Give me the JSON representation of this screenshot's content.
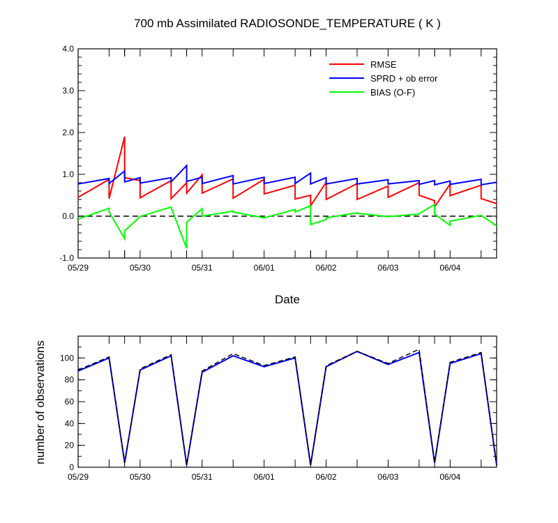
{
  "chart_data": [
    {
      "type": "line",
      "title": "700 mb Assimilated RADIOSONDE_TEMPERATURE ( K )",
      "xlabel": "Date",
      "ylabel": "",
      "x_tick_labels": [
        "05/29",
        "05/30",
        "05/31",
        "06/01",
        "06/02",
        "06/03",
        "06/04"
      ],
      "y_tick_labels": [
        "-1.0",
        "0.0",
        "1.0",
        "2.0",
        "3.0",
        "4.0"
      ],
      "ylim": [
        -1.0,
        4.0
      ],
      "xlim_days": [
        0,
        6.75
      ],
      "legend_position": "top-right",
      "reference_line": {
        "y": 0.0,
        "style": "dashed",
        "color": "#000000"
      },
      "series": [
        {
          "name": "RMSE",
          "color": "#ff0000",
          "x_days": [
            0,
            0.5,
            0.5,
            0.75,
            0.75,
            1.0,
            1.0,
            1.5,
            1.5,
            1.75,
            1.75,
            2.0,
            2.0,
            2.5,
            2.5,
            3.0,
            3.0,
            3.5,
            3.5,
            3.75,
            3.75,
            4.0,
            4.0,
            4.5,
            4.5,
            5.0,
            5.0,
            5.5,
            5.5,
            5.75,
            5.75,
            6.0,
            6.0,
            6.5,
            6.5,
            6.75
          ],
          "values": [
            0.45,
            0.88,
            0.42,
            1.9,
            0.92,
            0.85,
            0.44,
            0.85,
            0.42,
            0.8,
            0.55,
            0.99,
            0.55,
            0.89,
            0.43,
            0.88,
            0.53,
            0.74,
            0.41,
            0.5,
            0.25,
            0.81,
            0.4,
            0.78,
            0.4,
            0.72,
            0.45,
            0.8,
            0.5,
            0.37,
            0.22,
            0.77,
            0.49,
            0.74,
            0.42,
            0.3
          ]
        },
        {
          "name": "SPRD + ob error",
          "color": "#0000ff",
          "x_days": [
            0,
            0.5,
            0.5,
            0.75,
            0.75,
            1.0,
            1.0,
            1.5,
            1.5,
            1.75,
            1.75,
            2.0,
            2.0,
            2.5,
            2.5,
            3.0,
            3.0,
            3.5,
            3.5,
            3.75,
            3.75,
            4.0,
            4.0,
            4.5,
            4.5,
            5.0,
            5.0,
            5.5,
            5.5,
            5.75,
            5.75,
            6.0,
            6.0,
            6.5,
            6.5,
            6.75
          ],
          "values": [
            0.77,
            0.9,
            0.78,
            1.08,
            0.82,
            0.92,
            0.79,
            0.92,
            0.82,
            1.21,
            0.83,
            0.93,
            0.78,
            0.97,
            0.77,
            0.93,
            0.78,
            0.93,
            0.78,
            1.03,
            0.77,
            0.92,
            0.77,
            0.9,
            0.77,
            0.87,
            0.77,
            0.85,
            0.76,
            0.85,
            0.75,
            0.84,
            0.76,
            0.88,
            0.75,
            0.81
          ]
        },
        {
          "name": "BIAS (O-F)",
          "color": "#00ff00",
          "x_days": [
            0,
            0.5,
            0.5,
            0.75,
            0.75,
            1.0,
            1.0,
            1.5,
            1.5,
            1.75,
            1.75,
            2.0,
            2.0,
            2.5,
            2.5,
            3.0,
            3.0,
            3.5,
            3.5,
            3.75,
            3.75,
            4.0,
            4.0,
            4.5,
            4.5,
            5.0,
            5.0,
            5.5,
            5.5,
            5.75,
            5.75,
            6.0,
            6.0,
            6.5,
            6.5,
            6.75
          ],
          "values": [
            -0.07,
            0.19,
            0.1,
            -0.54,
            -0.35,
            -0.01,
            -0.01,
            0.22,
            0.21,
            -0.77,
            -0.14,
            0.18,
            0.0,
            0.12,
            0.1,
            -0.04,
            -0.04,
            0.16,
            0.1,
            0.25,
            -0.2,
            -0.08,
            -0.04,
            0.08,
            0.07,
            -0.01,
            -0.01,
            0.05,
            0.06,
            0.28,
            0.05,
            -0.22,
            -0.12,
            0.02,
            0.02,
            -0.23
          ]
        }
      ]
    },
    {
      "type": "line",
      "title": "",
      "xlabel": "",
      "ylabel": "number of observations",
      "x_tick_labels": [
        "05/29",
        "05/30",
        "05/31",
        "06/01",
        "06/02",
        "06/03",
        "06/04"
      ],
      "y_tick_labels": [
        "0",
        "20",
        "40",
        "60",
        "80",
        "100"
      ],
      "ylim": [
        0,
        120
      ],
      "xlim_days": [
        0,
        6.75
      ],
      "series": [
        {
          "color": "#0000ff",
          "style": "solid",
          "x_days": [
            0,
            0.5,
            0.75,
            1.0,
            1.5,
            1.75,
            2.0,
            2.5,
            3.0,
            3.5,
            3.75,
            4.0,
            4.5,
            5.0,
            5.5,
            5.75,
            6.0,
            6.5,
            6.75
          ],
          "values": [
            88,
            100,
            4,
            89,
            102,
            2,
            87,
            102,
            92,
            100,
            2,
            92,
            106,
            94,
            105,
            4,
            95,
            104,
            2
          ]
        },
        {
          "color": "#000000",
          "style": "dashed",
          "x_days": [
            0,
            0.5,
            0.75,
            1.0,
            1.5,
            1.75,
            2.0,
            2.5,
            3.0,
            3.5,
            3.75,
            4.0,
            4.5,
            5.0,
            5.5,
            5.75,
            6.0,
            6.5,
            6.75
          ],
          "values": [
            89,
            101,
            4,
            90,
            103,
            2,
            88,
            104,
            93,
            101,
            2,
            93,
            106,
            95,
            108,
            4,
            96,
            105,
            2
          ]
        }
      ]
    }
  ]
}
